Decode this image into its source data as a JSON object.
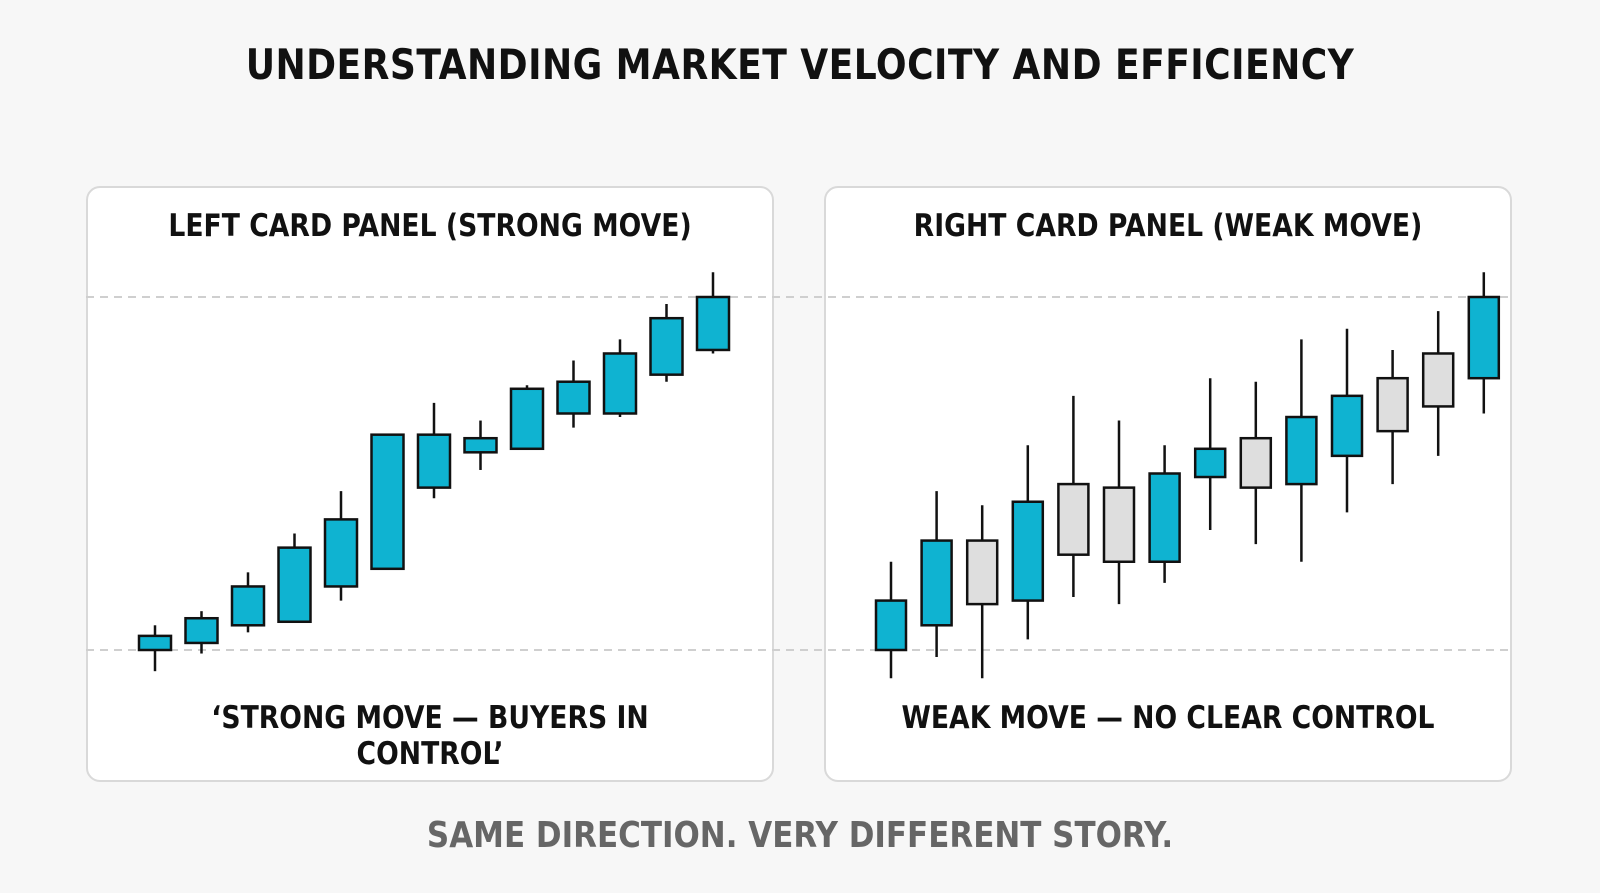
{
  "title": "UNDERSTANDING MARKET VELOCITY AND EFFICIENCY",
  "footer": "SAME DIRECTION. VERY DIFFERENT STORY.",
  "colors": {
    "bull": "#0fb3d1",
    "neutral": "#dedede",
    "outline": "#111111",
    "guide": "#cfcfcf"
  },
  "chart_data": [
    {
      "type": "candlestick",
      "title": "LEFT CARD PANEL (STRONG MOVE)",
      "caption": "‘STRONG MOVE — BUYERS IN CONTROL’",
      "ylim": [
        0,
        100
      ],
      "reference_levels": [
        0,
        100
      ],
      "candles": [
        {
          "open": 0,
          "close": 4,
          "high": 7,
          "low": -6,
          "color": "bull"
        },
        {
          "open": 2,
          "close": 9,
          "high": 11,
          "low": -1,
          "color": "bull"
        },
        {
          "open": 7,
          "close": 18,
          "high": 22,
          "low": 5,
          "color": "bull"
        },
        {
          "open": 8,
          "close": 29,
          "high": 33,
          "low": 8,
          "color": "bull"
        },
        {
          "open": 18,
          "close": 37,
          "high": 45,
          "low": 14,
          "color": "bull"
        },
        {
          "open": 23,
          "close": 61,
          "high": 61,
          "low": 23,
          "color": "bull"
        },
        {
          "open": 46,
          "close": 61,
          "high": 70,
          "low": 43,
          "color": "bull"
        },
        {
          "open": 56,
          "close": 60,
          "high": 65,
          "low": 51,
          "color": "bull"
        },
        {
          "open": 57,
          "close": 74,
          "high": 75,
          "low": 57,
          "color": "bull"
        },
        {
          "open": 67,
          "close": 76,
          "high": 82,
          "low": 63,
          "color": "bull"
        },
        {
          "open": 67,
          "close": 84,
          "high": 88,
          "low": 66,
          "color": "bull"
        },
        {
          "open": 78,
          "close": 94,
          "high": 98,
          "low": 76,
          "color": "bull"
        },
        {
          "open": 85,
          "close": 100,
          "high": 107,
          "low": 84,
          "color": "bull"
        }
      ]
    },
    {
      "type": "candlestick",
      "title": "RIGHT CARD PANEL (WEAK MOVE)",
      "caption": "WEAK MOVE — NO CLEAR CONTROL",
      "ylim": [
        0,
        100
      ],
      "reference_levels": [
        0,
        100
      ],
      "candles": [
        {
          "open": 0,
          "close": 14,
          "high": 25,
          "low": -8,
          "color": "bull"
        },
        {
          "open": 7,
          "close": 31,
          "high": 45,
          "low": -2,
          "color": "bull"
        },
        {
          "open": 13,
          "close": 31,
          "high": 41,
          "low": -8,
          "color": "neutral"
        },
        {
          "open": 14,
          "close": 42,
          "high": 58,
          "low": 3,
          "color": "bull"
        },
        {
          "open": 27,
          "close": 47,
          "high": 72,
          "low": 15,
          "color": "neutral"
        },
        {
          "open": 25,
          "close": 46,
          "high": 65,
          "low": 13,
          "color": "neutral"
        },
        {
          "open": 25,
          "close": 50,
          "high": 58,
          "low": 19,
          "color": "bull"
        },
        {
          "open": 49,
          "close": 57,
          "high": 77,
          "low": 34,
          "color": "bull"
        },
        {
          "open": 46,
          "close": 60,
          "high": 76,
          "low": 30,
          "color": "neutral"
        },
        {
          "open": 47,
          "close": 66,
          "high": 88,
          "low": 25,
          "color": "bull"
        },
        {
          "open": 55,
          "close": 72,
          "high": 91,
          "low": 39,
          "color": "bull"
        },
        {
          "open": 62,
          "close": 77,
          "high": 85,
          "low": 47,
          "color": "neutral"
        },
        {
          "open": 69,
          "close": 84,
          "high": 96,
          "low": 55,
          "color": "neutral"
        },
        {
          "open": 77,
          "close": 100,
          "high": 107,
          "low": 67,
          "color": "bull"
        }
      ]
    }
  ]
}
